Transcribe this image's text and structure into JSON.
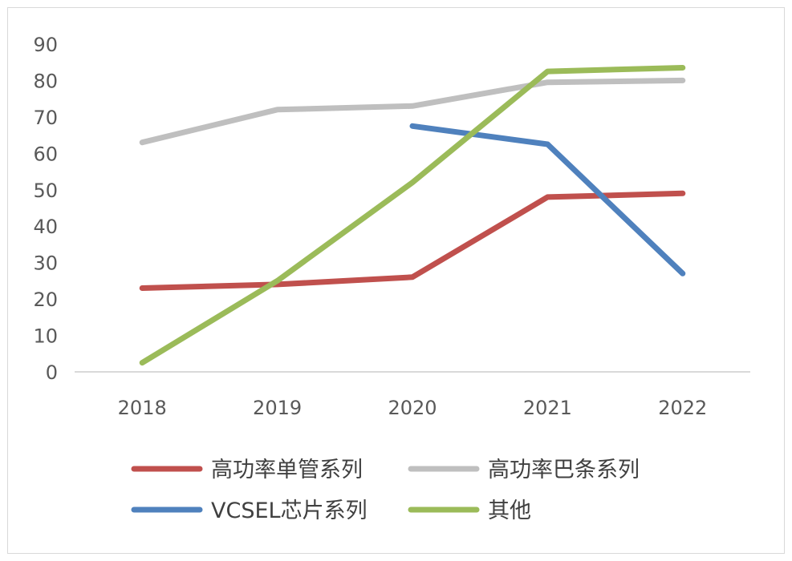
{
  "chart_data": {
    "type": "line",
    "categories": [
      "2018",
      "2019",
      "2020",
      "2021",
      "2022"
    ],
    "ylim": [
      0,
      90
    ],
    "yticks": [
      0,
      10,
      20,
      30,
      40,
      50,
      60,
      70,
      80,
      90
    ],
    "grid": false,
    "legend_position": "bottom",
    "title": "",
    "xlabel": "",
    "ylabel": "",
    "series": [
      {
        "name": "高功率单管系列",
        "color": "#c0504d",
        "values": [
          23,
          24,
          26,
          48,
          49
        ]
      },
      {
        "name": "高功率巴条系列",
        "color": "#bfbfbf",
        "values": [
          63,
          72,
          73,
          79.5,
          80
        ]
      },
      {
        "name": "VCSEL芯片系列",
        "color": "#4f81bd",
        "values": [
          null,
          null,
          67.5,
          62.5,
          27
        ]
      },
      {
        "name": "其他",
        "color": "#9bbb59",
        "values": [
          2.5,
          25,
          52,
          82.5,
          83.5
        ]
      }
    ]
  }
}
